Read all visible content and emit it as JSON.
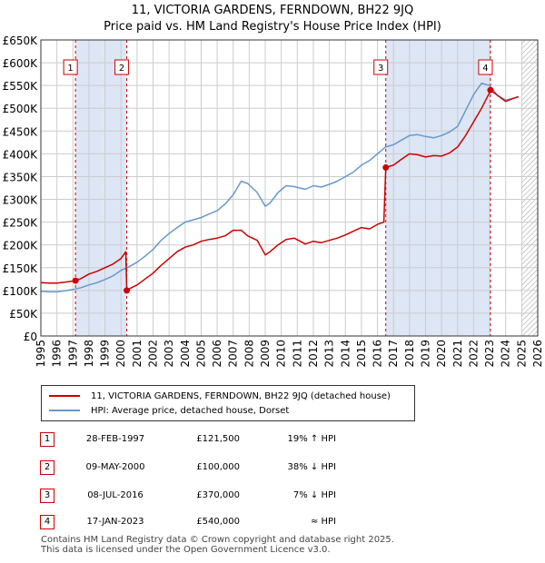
{
  "title": {
    "line1": "11, VICTORIA GARDENS, FERNDOWN, BH22 9JQ",
    "line2": "Price paid vs. HM Land Registry's House Price Index (HPI)"
  },
  "colors": {
    "price": "#cc0000",
    "hpi": "#6699cc",
    "shade": "#dde6f5",
    "grid": "#cccccc"
  },
  "chart_data": {
    "type": "line",
    "xlim": [
      1995,
      2026
    ],
    "ylim": [
      0,
      650000
    ],
    "xticks": [
      "1995",
      "1996",
      "1997",
      "1998",
      "1999",
      "2000",
      "2001",
      "2002",
      "2003",
      "2004",
      "2005",
      "2006",
      "2007",
      "2008",
      "2009",
      "2010",
      "2011",
      "2012",
      "2013",
      "2014",
      "2015",
      "2016",
      "2017",
      "2018",
      "2019",
      "2020",
      "2021",
      "2022",
      "2023",
      "2024",
      "2025",
      "2026"
    ],
    "yticks": [
      {
        "value": 0,
        "label": "£0"
      },
      {
        "value": 50000,
        "label": "£50K"
      },
      {
        "value": 100000,
        "label": "£100K"
      },
      {
        "value": 150000,
        "label": "£150K"
      },
      {
        "value": 200000,
        "label": "£200K"
      },
      {
        "value": 250000,
        "label": "£250K"
      },
      {
        "value": 300000,
        "label": "£300K"
      },
      {
        "value": 350000,
        "label": "£350K"
      },
      {
        "value": 400000,
        "label": "£400K"
      },
      {
        "value": 450000,
        "label": "£450K"
      },
      {
        "value": 500000,
        "label": "£500K"
      },
      {
        "value": 550000,
        "label": "£550K"
      },
      {
        "value": 600000,
        "label": "£600K"
      },
      {
        "value": 650000,
        "label": "£650K"
      }
    ],
    "shaded_periods": [
      [
        1997.16,
        2000.36
      ],
      [
        2016.52,
        2023.05
      ]
    ],
    "hatched_after": 2025.0,
    "series": [
      {
        "name": "11, VICTORIA GARDENS, FERNDOWN, BH22 9JQ (detached house)",
        "x": [
          1995.0,
          1995.5,
          1996.0,
          1996.5,
          1997.16,
          1997.5,
          1998.0,
          1998.5,
          1999.0,
          1999.5,
          2000.0,
          2000.3,
          2000.36,
          2000.6,
          2001.0,
          2001.5,
          2002.0,
          2002.5,
          2003.0,
          2003.5,
          2004.0,
          2004.5,
          2005.0,
          2005.5,
          2006.0,
          2006.5,
          2007.0,
          2007.5,
          2007.9,
          2008.5,
          2009.0,
          2009.3,
          2009.8,
          2010.3,
          2010.8,
          2011.5,
          2012.0,
          2012.5,
          2013.0,
          2013.5,
          2014.0,
          2014.5,
          2015.0,
          2015.5,
          2016.0,
          2016.4,
          2016.52,
          2017.0,
          2017.5,
          2018.0,
          2018.5,
          2019.0,
          2019.5,
          2020.0,
          2020.5,
          2021.0,
          2021.5,
          2022.0,
          2022.5,
          2023.0,
          2023.05,
          2023.5,
          2024.0,
          2024.5,
          2024.8
        ],
        "y": [
          117000,
          116000,
          116000,
          118000,
          121500,
          126000,
          136000,
          142000,
          150000,
          158000,
          170000,
          185000,
          100000,
          105000,
          112000,
          125000,
          138000,
          155000,
          170000,
          185000,
          195000,
          200000,
          208000,
          212000,
          215000,
          220000,
          232000,
          232000,
          220000,
          210000,
          178000,
          185000,
          200000,
          212000,
          215000,
          202000,
          208000,
          205000,
          210000,
          215000,
          222000,
          230000,
          238000,
          235000,
          245000,
          250000,
          370000,
          375000,
          388000,
          400000,
          398000,
          393000,
          396000,
          395000,
          402000,
          415000,
          440000,
          470000,
          500000,
          535000,
          540000,
          528000,
          515000,
          522000,
          525000
        ]
      },
      {
        "name": "HPI: Average price, detached house, Dorset",
        "x": [
          1995.0,
          1995.5,
          1996.0,
          1996.5,
          1997.0,
          1997.5,
          1998.0,
          1998.5,
          1999.0,
          1999.5,
          2000.0,
          2000.5,
          2001.0,
          2001.5,
          2002.0,
          2002.5,
          2003.0,
          2003.5,
          2004.0,
          2004.5,
          2005.0,
          2005.5,
          2006.0,
          2006.5,
          2007.0,
          2007.5,
          2007.9,
          2008.5,
          2009.0,
          2009.3,
          2009.8,
          2010.3,
          2010.8,
          2011.5,
          2012.0,
          2012.5,
          2013.0,
          2013.5,
          2014.0,
          2014.5,
          2015.0,
          2015.5,
          2016.0,
          2016.5,
          2017.0,
          2017.5,
          2018.0,
          2018.5,
          2019.0,
          2019.5,
          2020.0,
          2020.5,
          2021.0,
          2021.5,
          2022.0,
          2022.5,
          2023.0,
          2023.5,
          2024.0,
          2024.5,
          2024.8
        ],
        "y": [
          98000,
          97000,
          97000,
          99000,
          102000,
          106000,
          112000,
          117000,
          124000,
          132000,
          144000,
          152000,
          162000,
          175000,
          190000,
          210000,
          225000,
          238000,
          250000,
          255000,
          260000,
          268000,
          275000,
          290000,
          310000,
          340000,
          335000,
          315000,
          285000,
          292000,
          315000,
          330000,
          328000,
          322000,
          330000,
          327000,
          333000,
          340000,
          350000,
          360000,
          375000,
          385000,
          400000,
          415000,
          420000,
          430000,
          440000,
          442000,
          438000,
          435000,
          440000,
          448000,
          460000,
          495000,
          530000,
          555000,
          550000,
          528000,
          518000,
          522000,
          526000
        ]
      }
    ],
    "markers": [
      {
        "label": "1",
        "x": 1997.16,
        "y": 121500
      },
      {
        "label": "2",
        "x": 2000.36,
        "y": 100000
      },
      {
        "label": "3",
        "x": 2016.52,
        "y": 370000
      },
      {
        "label": "4",
        "x": 2023.05,
        "y": 540000
      }
    ]
  },
  "legend": {
    "price_label": "11, VICTORIA GARDENS, FERNDOWN, BH22 9JQ (detached house)",
    "hpi_label": "HPI: Average price, detached house, Dorset"
  },
  "transactions": [
    {
      "num": "1",
      "date": "28-FEB-1997",
      "price": "£121,500",
      "hpi": "19% ↑ HPI"
    },
    {
      "num": "2",
      "date": "09-MAY-2000",
      "price": "£100,000",
      "hpi": "38% ↓ HPI"
    },
    {
      "num": "3",
      "date": "08-JUL-2016",
      "price": "£370,000",
      "hpi": "7% ↓ HPI"
    },
    {
      "num": "4",
      "date": "17-JAN-2023",
      "price": "£540,000",
      "hpi": "≈ HPI"
    }
  ],
  "footer": {
    "line1": "Contains HM Land Registry data © Crown copyright and database right 2025.",
    "line2": "This data is licensed under the Open Government Licence v3.0."
  }
}
